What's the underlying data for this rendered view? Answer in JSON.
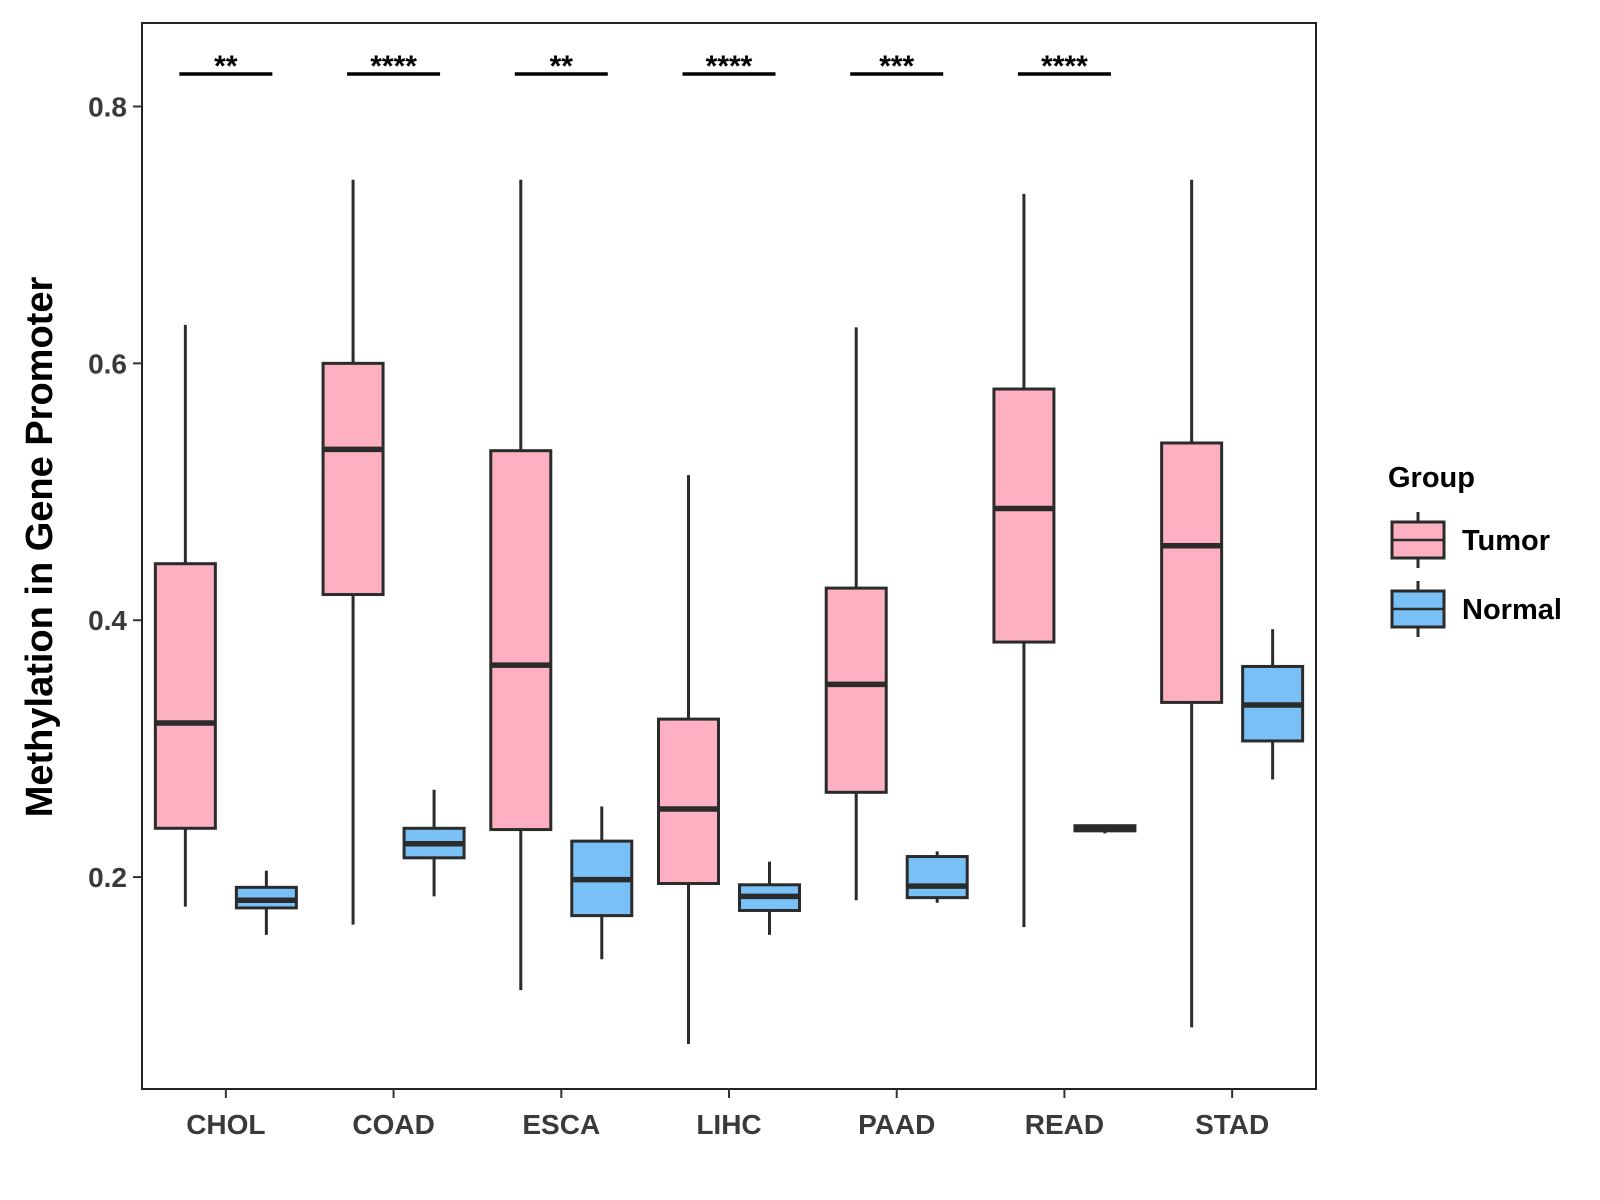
{
  "chart_data": {
    "type": "boxplot",
    "ylabel": "Methylation in Gene Promoter",
    "xlabel": "",
    "ylim": [
      0.035,
      0.865
    ],
    "yticks": [
      0.2,
      0.4,
      0.6,
      0.8
    ],
    "ytick_labels": [
      "0.2",
      "0.4",
      "0.6",
      "0.8"
    ],
    "categories": [
      "CHOL",
      "COAD",
      "ESCA",
      "LIHC",
      "PAAD",
      "READ",
      "STAD"
    ],
    "legend": {
      "title": "Group",
      "placement": "right",
      "items": [
        {
          "name": "Tumor",
          "color": "#fcb0c2"
        },
        {
          "name": "Normal",
          "color": "#79c0f6"
        }
      ]
    },
    "significance": [
      "**",
      "****",
      "**",
      "****",
      "***",
      "****",
      ""
    ],
    "series": [
      {
        "name": "Tumor",
        "color": "#fcb0c2",
        "boxes": [
          {
            "category": "CHOL",
            "whisker_low": 0.177,
            "q1": 0.238,
            "median": 0.32,
            "q3": 0.444,
            "whisker_high": 0.63
          },
          {
            "category": "COAD",
            "whisker_low": 0.163,
            "q1": 0.42,
            "median": 0.533,
            "q3": 0.6,
            "whisker_high": 0.743
          },
          {
            "category": "ESCA",
            "whisker_low": 0.112,
            "q1": 0.237,
            "median": 0.365,
            "q3": 0.532,
            "whisker_high": 0.743
          },
          {
            "category": "LIHC",
            "whisker_low": 0.07,
            "q1": 0.195,
            "median": 0.253,
            "q3": 0.323,
            "whisker_high": 0.513
          },
          {
            "category": "PAAD",
            "whisker_low": 0.182,
            "q1": 0.266,
            "median": 0.35,
            "q3": 0.425,
            "whisker_high": 0.628
          },
          {
            "category": "READ",
            "whisker_low": 0.161,
            "q1": 0.383,
            "median": 0.487,
            "q3": 0.58,
            "whisker_high": 0.732
          },
          {
            "category": "STAD",
            "whisker_low": 0.083,
            "q1": 0.336,
            "median": 0.458,
            "q3": 0.538,
            "whisker_high": 0.743
          }
        ]
      },
      {
        "name": "Normal",
        "color": "#79c0f6",
        "boxes": [
          {
            "category": "CHOL",
            "whisker_low": 0.155,
            "q1": 0.176,
            "median": 0.182,
            "q3": 0.192,
            "whisker_high": 0.205
          },
          {
            "category": "COAD",
            "whisker_low": 0.185,
            "q1": 0.215,
            "median": 0.226,
            "q3": 0.238,
            "whisker_high": 0.268
          },
          {
            "category": "ESCA",
            "whisker_low": 0.136,
            "q1": 0.17,
            "median": 0.198,
            "q3": 0.228,
            "whisker_high": 0.255
          },
          {
            "category": "LIHC",
            "whisker_low": 0.155,
            "q1": 0.174,
            "median": 0.185,
            "q3": 0.194,
            "whisker_high": 0.212
          },
          {
            "category": "PAAD",
            "whisker_low": 0.18,
            "q1": 0.184,
            "median": 0.193,
            "q3": 0.216,
            "whisker_high": 0.22
          },
          {
            "category": "READ",
            "whisker_low": 0.234,
            "q1": 0.236,
            "median": 0.238,
            "q3": 0.24,
            "whisker_high": 0.241
          },
          {
            "category": "STAD",
            "whisker_low": 0.276,
            "q1": 0.306,
            "median": 0.334,
            "q3": 0.364,
            "whisker_high": 0.393
          }
        ]
      }
    ]
  }
}
